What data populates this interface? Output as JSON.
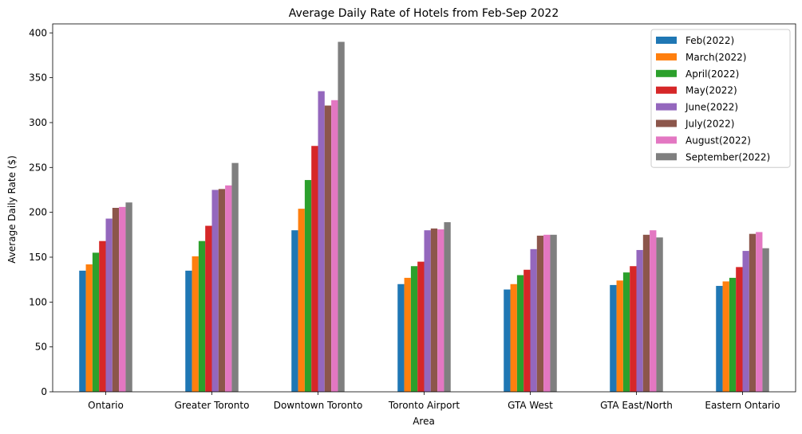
{
  "chart_data": {
    "type": "bar",
    "title": "Average Daily Rate of Hotels from Feb-Sep 2022",
    "xlabel": "Area",
    "ylabel": "Average Daily Rate ($)",
    "ylim": [
      0,
      410
    ],
    "yticks": [
      0,
      50,
      100,
      150,
      200,
      250,
      300,
      350,
      400
    ],
    "grid": false,
    "legend_position": "top-right",
    "categories": [
      "Ontario",
      "Greater Toronto",
      "Downtown Toronto",
      "Toronto Airport",
      "GTA West",
      "GTA East/North",
      "Eastern Ontario"
    ],
    "series": [
      {
        "name": "Feb(2022)",
        "color": "#1f77b4",
        "values": [
          135,
          135,
          180,
          120,
          114,
          119,
          118
        ]
      },
      {
        "name": "March(2022)",
        "color": "#ff7f0e",
        "values": [
          142,
          151,
          204,
          127,
          120,
          124,
          123
        ]
      },
      {
        "name": "April(2022)",
        "color": "#2ca02c",
        "values": [
          155,
          168,
          236,
          140,
          130,
          133,
          127
        ]
      },
      {
        "name": "May(2022)",
        "color": "#d62728",
        "values": [
          168,
          185,
          274,
          145,
          136,
          140,
          139
        ]
      },
      {
        "name": "June(2022)",
        "color": "#9467bd",
        "values": [
          193,
          225,
          335,
          180,
          159,
          158,
          157
        ]
      },
      {
        "name": "July(2022)",
        "color": "#8c564b",
        "values": [
          205,
          226,
          319,
          182,
          174,
          175,
          176
        ]
      },
      {
        "name": "August(2022)",
        "color": "#e377c2",
        "values": [
          206,
          230,
          325,
          181,
          175,
          180,
          178
        ]
      },
      {
        "name": "September(2022)",
        "color": "#7f7f7f",
        "values": [
          211,
          255,
          390,
          189,
          175,
          172,
          160
        ]
      }
    ]
  }
}
